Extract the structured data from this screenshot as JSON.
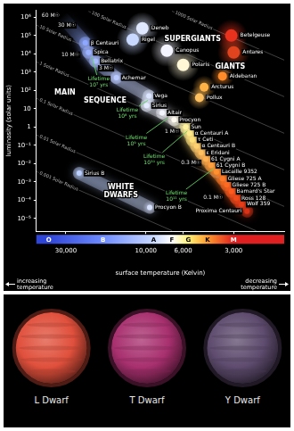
{
  "chart_data": {
    "type": "scatter",
    "x_label": "surface temperature (Kelvin)",
    "y_label": "luminosity (solar units)",
    "x_note_left": "increasing temperature",
    "x_note_right": "decreasing temperature",
    "log": true,
    "grid": false,
    "xlim": [
      45000,
      1500
    ],
    "xticks": [
      {
        "value": 30000,
        "label": "30,000"
      },
      {
        "value": 10000,
        "label": "10,000"
      },
      {
        "value": 6000,
        "label": "6,000"
      },
      {
        "value": 3000,
        "label": "3,000"
      }
    ],
    "ylim": [
      2e-06,
      2500000
    ],
    "yticks": [
      {
        "value": 1000000,
        "label": "10⁶"
      },
      {
        "value": 100000,
        "label": "10⁵"
      },
      {
        "value": 10000,
        "label": "10⁴"
      },
      {
        "value": 1000,
        "label": "10³"
      },
      {
        "value": 100,
        "label": "10²"
      },
      10,
      1,
      {
        "value": 0.1,
        "label": "10⁻¹"
      },
      {
        "value": 0.01,
        "label": "10⁻²"
      },
      {
        "value": 0.001,
        "label": "10⁻³"
      },
      {
        "value": 0.0001,
        "label": "10⁻⁴"
      },
      {
        "value": 1e-05,
        "label": "10⁻⁵"
      }
    ],
    "spectral_classes": [
      {
        "label": "O",
        "value": 38000,
        "color": "#2f45d8"
      },
      {
        "label": "B",
        "value": 18000,
        "color": "#6f8cff"
      },
      {
        "label": "A",
        "value": 9000,
        "color": "#c8d8ff"
      },
      {
        "label": "F",
        "value": 7000,
        "color": "#ffffff"
      },
      {
        "label": "G",
        "value": 5600,
        "color": "#fff176"
      },
      {
        "label": "K",
        "value": 4300,
        "color": "#ff9a2e"
      },
      {
        "label": "M",
        "value": 3000,
        "color": "#e02020"
      }
    ],
    "regions": [
      {
        "text": [
          "SUPERGIANTS"
        ],
        "text_x": [
          5270
        ],
        "text_y": [
          63000
        ],
        "marker": "large",
        "stars": [
          {
            "name": "Deneb",
            "x": 10500,
            "y": 250000,
            "color": "#dfe8ff"
          },
          {
            "name": "Rigel",
            "x": 12000,
            "y": 60000,
            "color": "#c9d8ff"
          },
          {
            "name": "Canopus",
            "x": 7500,
            "y": 15000,
            "color": "#f4f4ff"
          },
          {
            "name": "Polaris",
            "x": 6000,
            "y": 2500,
            "color": "#fff7d6"
          },
          {
            "name": "Betelgeuse",
            "x": 3100,
            "y": 100000,
            "color": "#e8321e"
          },
          {
            "name": "Antares",
            "x": 3000,
            "y": 12000,
            "color": "#e0441f"
          }
        ]
      },
      {
        "text": [
          "GIANTS"
        ],
        "text_x": [
          3150
        ],
        "text_y": [
          2000
        ],
        "marker": "medium",
        "stars": [
          {
            "name": "Arcturus",
            "x": 4500,
            "y": 150,
            "color": "#ffb347"
          },
          {
            "name": "Aldebaran",
            "x": 3500,
            "y": 600,
            "color": "#ff8a2a"
          },
          {
            "name": "Pollux",
            "x": 4800,
            "y": 40,
            "color": "#ffc060"
          }
        ]
      },
      {
        "text": [
          "MAIN",
          "SEQUENCE"
        ],
        "text_x": [
          30400,
          17500
        ],
        "text_y": [
          78,
          26
        ],
        "marker": "small",
        "line_style": "band",
        "stars": [
          {
            "name": "β Centauri",
            "x": 23000,
            "y": 40000,
            "color": "#8fa8ff"
          },
          {
            "name": "Spica",
            "x": 22000,
            "y": 12000,
            "color": "#9db2ff"
          },
          {
            "name": "Bellatrix",
            "x": 20000,
            "y": 4000,
            "color": "#a9bcff"
          },
          {
            "name": "Achernar",
            "x": 15000,
            "y": 500,
            "color": "#bccbff"
          },
          {
            "name": "Vega",
            "x": 9600,
            "y": 50,
            "color": "#dde6ff"
          },
          {
            "name": "Sirius",
            "x": 9900,
            "y": 15,
            "color": "#e6ecff"
          },
          {
            "name": "Altair",
            "x": 8000,
            "y": 6,
            "color": "#f4f4ff"
          },
          {
            "name": "Procyon",
            "x": 6800,
            "y": 2.5,
            "color": "#fffaf0"
          },
          {
            "name": "Sun",
            "x": 5800,
            "y": 1,
            "color": "#fff3a0"
          },
          {
            "name": "α Centauri A",
            "x": 5500,
            "y": 0.45,
            "color": "#ffe98a"
          },
          {
            "name": "τ Ceti",
            "x": 5300,
            "y": 0.2,
            "color": "#ffe07a"
          },
          {
            "name": "α Centauri B",
            "x": 5000,
            "y": 0.09,
            "color": "#ffd070"
          },
          {
            "name": "ε Eridani",
            "x": 4700,
            "y": 0.04,
            "color": "#ffc060"
          },
          {
            "name": "61 Cygni A",
            "x": 4400,
            "y": 0.018,
            "color": "#ffb050"
          },
          {
            "name": "61 Cygni B",
            "x": 4100,
            "y": 0.008,
            "color": "#ffa040"
          },
          {
            "name": "Lacaille 9352",
            "x": 3800,
            "y": 0.0035,
            "color": "#ff9030"
          },
          {
            "name": "Gliese 725 A",
            "x": 3500,
            "y": 0.0015,
            "color": "#ff7a28"
          },
          {
            "name": "Gliese 725 B",
            "x": 3300,
            "y": 0.0007,
            "color": "#ff6a22"
          },
          {
            "name": "Barnard's Star",
            "x": 3100,
            "y": 0.0003,
            "color": "#ff5a1e"
          },
          {
            "name": "Ross 128",
            "x": 2900,
            "y": 0.00013,
            "color": "#f04a1a"
          },
          {
            "name": "Wolf 359",
            "x": 2700,
            "y": 6e-05,
            "color": "#e63c18"
          },
          {
            "name": "Proxima Centauri",
            "x": 2500,
            "y": 2.5e-05,
            "color": "#d93216"
          }
        ]
      },
      {
        "text": [
          "WHITE",
          "DWARFS"
        ],
        "text_x": [
          14100,
          14100
        ],
        "text_y": [
          0.00053,
          0.00018
        ],
        "marker": "small",
        "line_style": "band",
        "stars": [
          {
            "name": "Sirius B",
            "x": 25000,
            "y": 0.003,
            "color": "#bcd0ff"
          },
          {
            "name": "Procyon B",
            "x": 9500,
            "y": 4e-05,
            "color": "#d8e2ff"
          }
        ]
      }
    ],
    "mass_labels": [
      {
        "label": "60 M☉",
        "x": 41800,
        "y": 1300000
      },
      {
        "label": "30 M☉",
        "x": 33500,
        "y": 360000
      },
      {
        "label": "10 M☉",
        "x": 31900,
        "y": 9000
      },
      {
        "label": "3 M☉",
        "x": 19100,
        "y": 1610
      },
      {
        "label": "1 M☉",
        "x": 7710,
        "y": 0.54
      },
      {
        "label": "0.3 M☉",
        "x": 6180,
        "y": 0.011
      },
      {
        "label": "0.1 M☉",
        "x": 4550,
        "y": 0.000146
      }
    ],
    "lifetimes": [
      {
        "label": "Lifetime 10⁷ yrs",
        "x": 19100,
        "y": 285,
        "to_x": 21000,
        "to_y": 6900
      },
      {
        "label": "Lifetime 10⁸ yrs",
        "x": 12900,
        "y": 5.8,
        "to_x": 9730,
        "to_y": 29
      },
      {
        "label": "Lifetime 10⁹ yrs",
        "x": 11400,
        "y": 0.183,
        "to_x": 7430,
        "to_y": 3
      },
      {
        "label": "Lifetime 10¹⁰ yrs",
        "x": 8930,
        "y": 0.0169,
        "to_x": 5670,
        "to_y": 0.6
      },
      {
        "label": "Lifetime 10¹¹ yrs",
        "x": 6580,
        "y": 0.000162,
        "to_x": 3950,
        "to_y": 0.00533
      }
    ],
    "radius_lines": [
      {
        "label": "1000 Solar Radius",
        "x": [
          7000,
          1500
        ],
        "y": [
          2163000,
          4561
        ]
      },
      {
        "label": "100 Solar Radius",
        "x": [
          22000,
          1500
        ],
        "y": [
          2110500,
          45.61
        ]
      },
      {
        "label": "10 Solar Radius",
        "x": [
          45000,
          1500
        ],
        "y": [
          369440,
          0.4561
        ]
      },
      {
        "label": "1 Solar Radius",
        "x": [
          45000,
          1500
        ],
        "y": [
          3694.4,
          0.004561
        ]
      },
      {
        "label": "0.1 Solar Radius",
        "x": [
          45000,
          1500
        ],
        "y": [
          36.944,
          4.561e-05
        ]
      },
      {
        "label": "0.01 Solar Radius",
        "x": [
          45000,
          2200
        ],
        "y": [
          0.36944,
          2.1105e-06
        ]
      },
      {
        "label": "0.001 Solar Radius",
        "x": [
          45000,
          7000
        ],
        "y": [
          0.0036944,
          2.16314e-06
        ]
      }
    ]
  },
  "brown_dwarfs": [
    {
      "label": "L Dwarf",
      "color": "#e0503c"
    },
    {
      "label": "T Dwarf",
      "color": "#a8306f"
    },
    {
      "label": "Y Dwarf",
      "color": "#5e4b6e"
    }
  ]
}
